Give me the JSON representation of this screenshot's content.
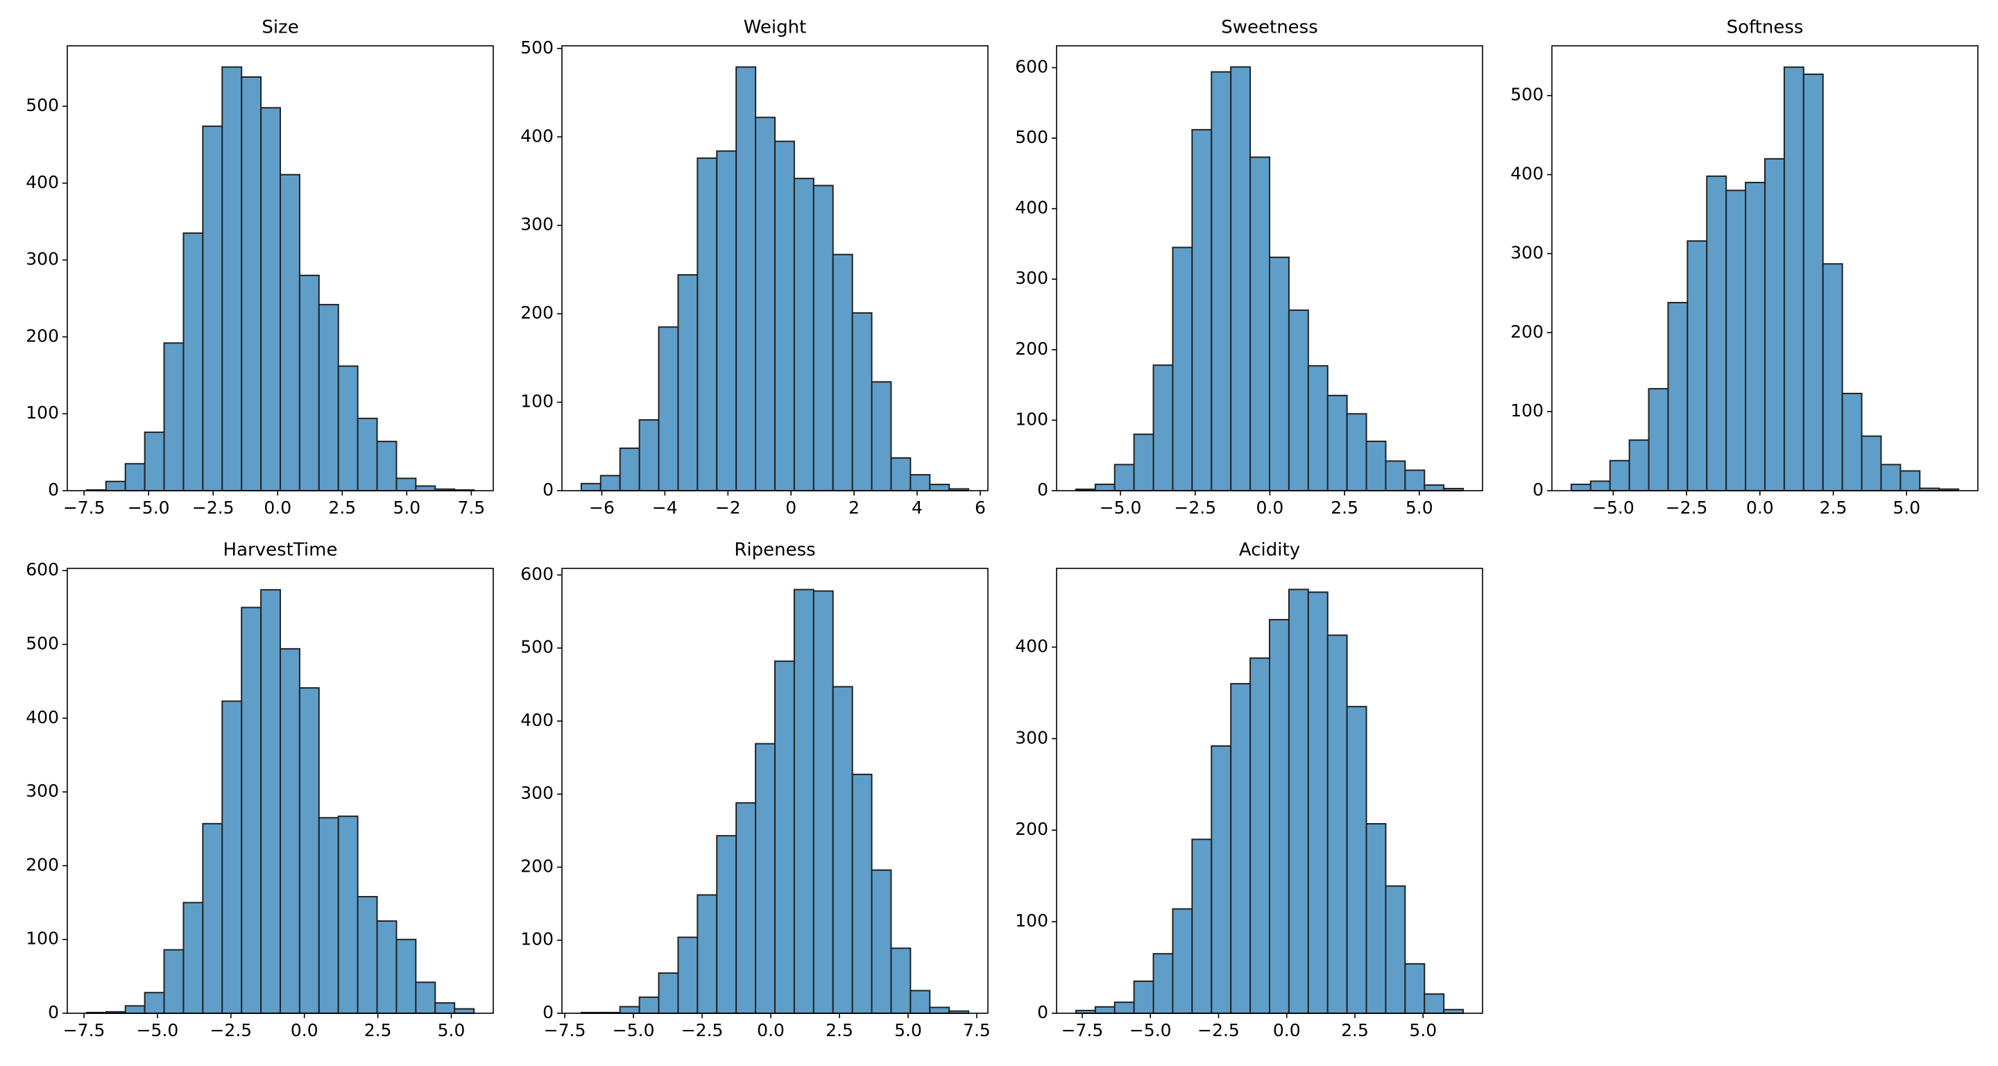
{
  "chart_data": [
    {
      "type": "histogram",
      "title": "Size",
      "color": "#5f9ec9",
      "bins": [
        -7.4,
        -6.65,
        -5.9,
        -5.15,
        -4.4,
        -3.65,
        -2.9,
        -2.15,
        -1.4,
        -0.65,
        0.1,
        0.85,
        1.6,
        2.35,
        3.1,
        3.85,
        4.6,
        5.35,
        6.1,
        6.85,
        7.6
      ],
      "values": [
        1,
        12,
        35,
        76,
        192,
        335,
        474,
        551,
        538,
        498,
        411,
        280,
        242,
        162,
        94,
        64,
        16,
        6,
        2,
        1
      ],
      "xlim": [
        -8.15,
        8.35
      ],
      "ylim": [
        0,
        578.6
      ],
      "xticks": [
        {
          "value": -7.5,
          "label": "−7.5"
        },
        {
          "value": -5,
          "label": "−5.0"
        },
        {
          "value": -2.5,
          "label": "−2.5"
        },
        {
          "value": 0,
          "label": "0.0"
        },
        {
          "value": 2.5,
          "label": "2.5"
        },
        {
          "value": 5,
          "label": "5.0"
        },
        {
          "value": 7.5,
          "label": "7.5"
        }
      ],
      "yticks": [
        0,
        100,
        200,
        300,
        400,
        500
      ]
    },
    {
      "type": "histogram",
      "title": "Weight",
      "color": "#5f9ec9",
      "bins": [
        -6.65,
        -6.036,
        -5.422,
        -4.808,
        -4.194,
        -3.58,
        -2.966,
        -2.352,
        -1.738,
        -1.124,
        -0.51,
        0.104,
        0.718,
        1.332,
        1.946,
        2.56,
        3.174,
        3.788,
        4.402,
        5.016,
        5.63
      ],
      "values": [
        8,
        17,
        48,
        80,
        185,
        244,
        376,
        384,
        479,
        422,
        395,
        353,
        345,
        267,
        201,
        123,
        37,
        18,
        7,
        2
      ],
      "xlim": [
        -7.264,
        6.244
      ],
      "ylim": [
        0,
        503
      ],
      "xticks": [
        {
          "value": -6,
          "label": "−6"
        },
        {
          "value": -4,
          "label": "−4"
        },
        {
          "value": -2,
          "label": "−2"
        },
        0,
        2,
        4,
        6
      ],
      "yticks": [
        0,
        100,
        200,
        300,
        400,
        500
      ]
    },
    {
      "type": "histogram",
      "title": "Sweetness",
      "color": "#5f9ec9",
      "bins": [
        -6.49,
        -5.842,
        -5.194,
        -4.546,
        -3.898,
        -3.25,
        -2.602,
        -1.954,
        -1.306,
        -0.658,
        -0.01,
        0.638,
        1.286,
        1.934,
        2.582,
        3.23,
        3.878,
        4.526,
        5.174,
        5.822,
        6.47
      ],
      "values": [
        2,
        9,
        37,
        80,
        178,
        345,
        512,
        594,
        601,
        473,
        331,
        256,
        177,
        135,
        109,
        70,
        42,
        29,
        8,
        3
      ],
      "xlim": [
        -7.138,
        7.118
      ],
      "ylim": [
        0,
        631
      ],
      "xticks": [
        {
          "value": -5,
          "label": "−5.0"
        },
        {
          "value": -2.5,
          "label": "−2.5"
        },
        {
          "value": 0,
          "label": "0.0"
        },
        {
          "value": 2.5,
          "label": "2.5"
        },
        {
          "value": 5,
          "label": "5.0"
        }
      ],
      "yticks": [
        0,
        100,
        200,
        300,
        400,
        500,
        600
      ]
    },
    {
      "type": "histogram",
      "title": "Softness",
      "color": "#5f9ec9",
      "bins": [
        -6.43,
        -5.77,
        -5.11,
        -4.45,
        -3.79,
        -3.13,
        -2.47,
        -1.81,
        -1.15,
        -0.49,
        0.17,
        0.83,
        1.49,
        2.15,
        2.81,
        3.47,
        4.13,
        4.79,
        5.45,
        6.11,
        6.77
      ],
      "values": [
        8,
        12,
        38,
        64,
        129,
        238,
        316,
        398,
        380,
        390,
        420,
        536,
        527,
        287,
        123,
        69,
        33,
        25,
        3,
        2
      ],
      "xlim": [
        -7.09,
        7.43
      ],
      "ylim": [
        0,
        563
      ],
      "xticks": [
        {
          "value": -5,
          "label": "−5.0"
        },
        {
          "value": -2.5,
          "label": "−2.5"
        },
        {
          "value": 0,
          "label": "0.0"
        },
        {
          "value": 2.5,
          "label": "2.5"
        },
        {
          "value": 5,
          "label": "5.0"
        }
      ],
      "yticks": [
        0,
        100,
        200,
        300,
        400,
        500
      ]
    },
    {
      "type": "histogram",
      "title": "HarvestTime",
      "color": "#5f9ec9",
      "bins": [
        -7.41,
        -6.751,
        -6.092,
        -5.433,
        -4.774,
        -4.115,
        -3.456,
        -2.797,
        -2.138,
        -1.479,
        -0.82,
        -0.161,
        0.498,
        1.157,
        1.816,
        2.475,
        3.134,
        3.793,
        4.452,
        5.111,
        5.77
      ],
      "values": [
        1,
        2,
        10,
        28,
        86,
        150,
        257,
        423,
        550,
        574,
        494,
        441,
        265,
        267,
        158,
        125,
        100,
        42,
        14,
        6
      ],
      "xlim": [
        -8.069,
        6.429
      ],
      "ylim": [
        0,
        603
      ],
      "xticks": [
        {
          "value": -7.5,
          "label": "−7.5"
        },
        {
          "value": -5,
          "label": "−5.0"
        },
        {
          "value": -2.5,
          "label": "−2.5"
        },
        {
          "value": 0,
          "label": "0.0"
        },
        {
          "value": 2.5,
          "label": "2.5"
        },
        {
          "value": 5,
          "label": "5.0"
        }
      ],
      "yticks": [
        0,
        100,
        200,
        300,
        400,
        500,
        600
      ]
    },
    {
      "type": "histogram",
      "title": "Ripeness",
      "color": "#5f9ec9",
      "bins": [
        -6.9,
        -6.195,
        -5.49,
        -4.785,
        -4.08,
        -3.375,
        -2.67,
        -1.965,
        -1.26,
        -0.555,
        0.15,
        0.855,
        1.56,
        2.265,
        2.97,
        3.675,
        4.38,
        5.085,
        5.79,
        6.495,
        7.2
      ],
      "values": [
        1,
        1,
        9,
        22,
        55,
        104,
        162,
        243,
        288,
        369,
        482,
        580,
        578,
        447,
        327,
        196,
        89,
        31,
        8,
        3
      ],
      "xlim": [
        -7.605,
        7.905
      ],
      "ylim": [
        0,
        609
      ],
      "xticks": [
        {
          "value": -7.5,
          "label": "−7.5"
        },
        {
          "value": -5,
          "label": "−5.0"
        },
        {
          "value": -2.5,
          "label": "−2.5"
        },
        {
          "value": 0,
          "label": "0.0"
        },
        {
          "value": 2.5,
          "label": "2.5"
        },
        {
          "value": 5,
          "label": "5.0"
        },
        {
          "value": 7.5,
          "label": "7.5"
        }
      ],
      "yticks": [
        0,
        100,
        200,
        300,
        400,
        500,
        600
      ]
    },
    {
      "type": "histogram",
      "title": "Acidity",
      "color": "#5f9ec9",
      "bins": [
        -7.73,
        -7.02,
        -6.31,
        -5.6,
        -4.89,
        -4.18,
        -3.47,
        -2.76,
        -2.05,
        -1.34,
        -0.63,
        0.08,
        0.79,
        1.5,
        2.21,
        2.92,
        3.63,
        4.34,
        5.05,
        5.76,
        6.47
      ],
      "values": [
        3,
        7,
        12,
        35,
        65,
        114,
        190,
        292,
        360,
        388,
        430,
        463,
        460,
        413,
        335,
        207,
        139,
        54,
        21,
        4
      ],
      "xlim": [
        -8.44,
        7.18
      ],
      "ylim": [
        0,
        486
      ],
      "xticks": [
        {
          "value": -7.5,
          "label": "−7.5"
        },
        {
          "value": -5,
          "label": "−5.0"
        },
        {
          "value": -2.5,
          "label": "−2.5"
        },
        {
          "value": 0,
          "label": "0.0"
        },
        {
          "value": 2.5,
          "label": "2.5"
        },
        {
          "value": 5,
          "label": "5.0"
        }
      ],
      "yticks": [
        0,
        100,
        200,
        300,
        400
      ]
    }
  ]
}
